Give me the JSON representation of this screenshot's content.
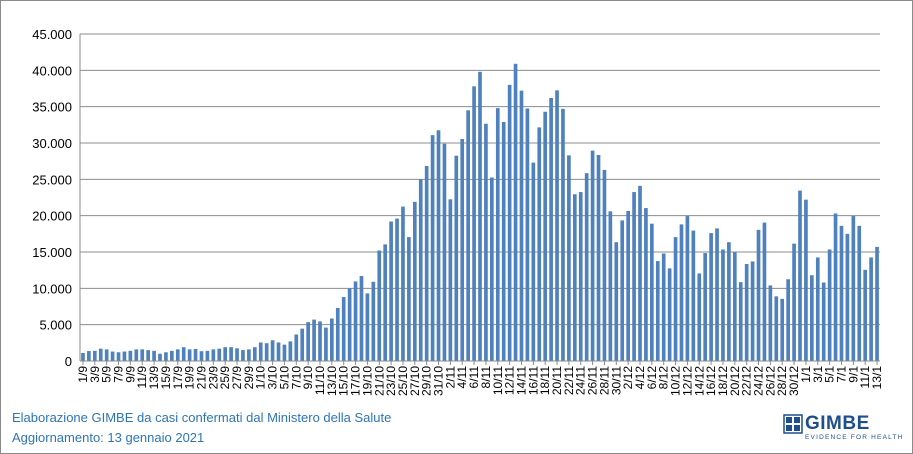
{
  "chart_data": {
    "type": "bar",
    "title": "",
    "xlabel": "",
    "ylabel": "",
    "ylim": [
      0,
      45000
    ],
    "yticks": [
      "0",
      "5.000",
      "10.000",
      "15.000",
      "20.000",
      "25.000",
      "30.000",
      "35.000",
      "40.000",
      "45.000"
    ],
    "grid": true,
    "bar_color": "#4f81bd",
    "categories": [
      "1/9",
      "2/9",
      "3/9",
      "4/9",
      "5/9",
      "6/9",
      "7/9",
      "8/9",
      "9/9",
      "10/9",
      "11/9",
      "12/9",
      "13/9",
      "14/9",
      "15/9",
      "16/9",
      "17/9",
      "18/9",
      "19/9",
      "20/9",
      "21/9",
      "22/9",
      "23/9",
      "24/9",
      "25/9",
      "26/9",
      "27/9",
      "28/9",
      "29/9",
      "30/9",
      "1/10",
      "2/10",
      "3/10",
      "4/10",
      "5/10",
      "6/10",
      "7/10",
      "8/10",
      "9/10",
      "10/10",
      "11/10",
      "12/10",
      "13/10",
      "14/10",
      "15/10",
      "16/10",
      "17/10",
      "18/10",
      "19/10",
      "20/10",
      "21/10",
      "22/10",
      "23/10",
      "24/10",
      "25/10",
      "26/10",
      "27/10",
      "28/10",
      "29/10",
      "30/10",
      "31/10",
      "1/11",
      "2/11",
      "3/11",
      "4/11",
      "5/11",
      "6/11",
      "7/11",
      "8/11",
      "9/11",
      "10/11",
      "11/11",
      "12/11",
      "13/11",
      "14/11",
      "15/11",
      "16/11",
      "17/11",
      "18/11",
      "19/11",
      "20/11",
      "21/11",
      "22/11",
      "23/11",
      "24/11",
      "25/11",
      "26/11",
      "27/11",
      "28/11",
      "29/11",
      "30/11",
      "1/12",
      "2/12",
      "3/12",
      "4/12",
      "5/12",
      "6/12",
      "7/12",
      "8/12",
      "9/12",
      "10/12",
      "11/12",
      "12/12",
      "13/12",
      "14/12",
      "15/12",
      "16/12",
      "17/12",
      "18/12",
      "19/12",
      "20/12",
      "21/12",
      "22/12",
      "23/12",
      "24/12",
      "25/12",
      "26/12",
      "27/12",
      "28/12",
      "29/12",
      "30/12",
      "31/12",
      "1/1",
      "2/1",
      "3/1",
      "4/1",
      "5/1",
      "6/1",
      "7/1",
      "8/1",
      "9/1",
      "10/1",
      "11/1",
      "12/1",
      "13/1"
    ],
    "values": [
      1100,
      1370,
      1400,
      1700,
      1600,
      1300,
      1200,
      1300,
      1400,
      1600,
      1600,
      1500,
      1400,
      1000,
      1200,
      1400,
      1600,
      1900,
      1600,
      1650,
      1350,
      1400,
      1600,
      1700,
      1900,
      1900,
      1750,
      1500,
      1600,
      1900,
      2550,
      2450,
      2850,
      2550,
      2250,
      2700,
      3650,
      4450,
      5350,
      5700,
      5450,
      4600,
      5850,
      7300,
      8800,
      10000,
      10950,
      11700,
      9300,
      10900,
      15200,
      16050,
      19200,
      19600,
      21250,
      17050,
      21900,
      24990,
      26830,
      31080,
      31750,
      29900,
      22250,
      28250,
      30550,
      34500,
      37800,
      39800,
      32650,
      25250,
      34800,
      32900,
      38000,
      40900,
      37200,
      34750,
      27300,
      32150,
      34300,
      36200,
      37250,
      34700,
      28300,
      22950,
      23250,
      25850,
      28950,
      28350,
      26300,
      20600,
      16350,
      19350,
      20650,
      23250,
      24100,
      21050,
      18900,
      13750,
      14800,
      12750,
      17050,
      18800,
      19950,
      17950,
      12050,
      14850,
      17600,
      18250,
      15350,
      16350,
      14950,
      10850,
      13350,
      13700,
      18050,
      19050,
      10400,
      8900,
      8550,
      11250,
      16150,
      23450,
      22200,
      11800,
      14250,
      10800,
      15350,
      20300,
      18600,
      17500,
      19950,
      18600,
      12550,
      14250,
      15700
    ]
  },
  "captions": {
    "line1": "Elaborazione GIMBE da casi confermati dal Ministero della Salute",
    "line2": "Aggiornamento: 13 gennaio 2021"
  },
  "logo": {
    "name": "GIMBE",
    "tagline": "EVIDENCE FOR HEALTH"
  }
}
